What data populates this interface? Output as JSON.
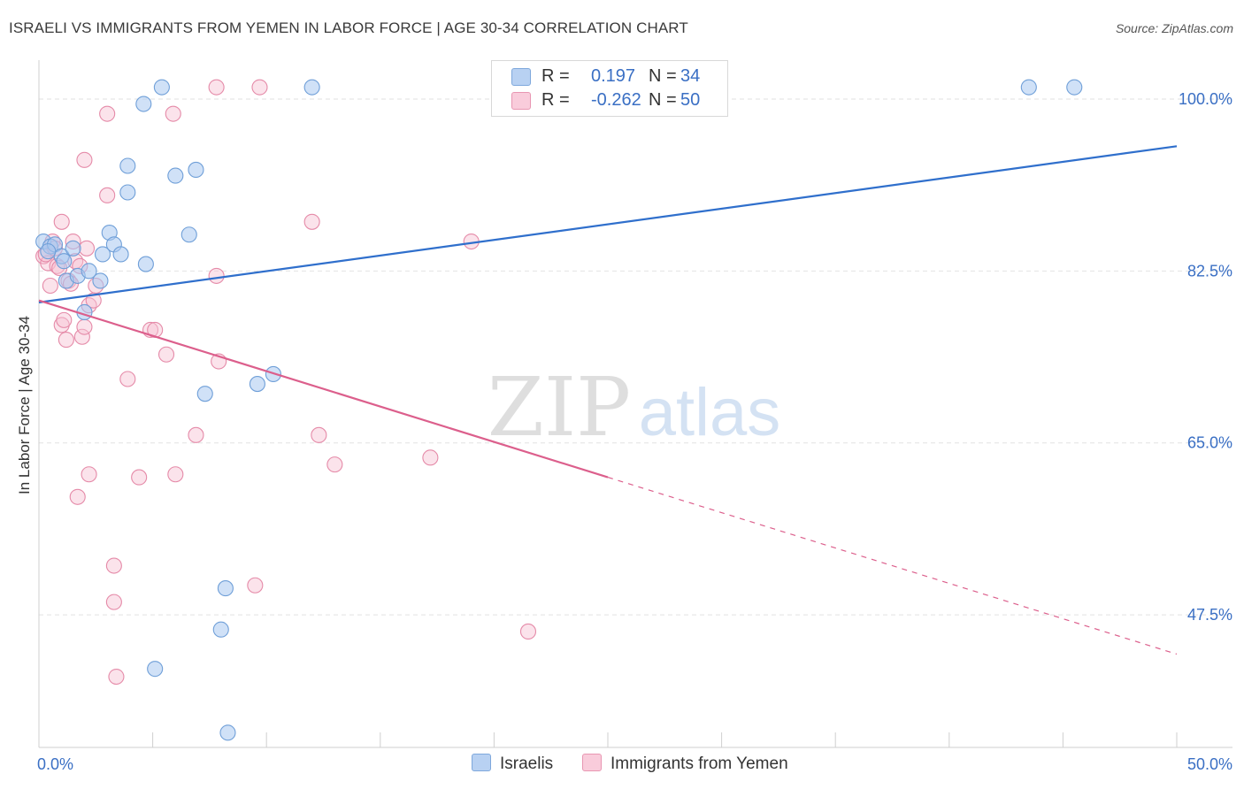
{
  "title": "ISRAELI VS IMMIGRANTS FROM YEMEN IN LABOR FORCE | AGE 30-34 CORRELATION CHART",
  "source": "Source: ZipAtlas.com",
  "watermark": {
    "zip": "ZIP",
    "atlas": "atlas"
  },
  "colors": {
    "blue_fill": "#a9c8f0",
    "blue_stroke": "#6f9fd8",
    "blue_line": "#2f6fcc",
    "pink_fill": "#f7c0d2",
    "pink_stroke": "#e58aa8",
    "pink_line": "#dc5f8c",
    "axis_text": "#3a6fc4",
    "grid": "#e2e2e2"
  },
  "legend": {
    "r_label": "R =",
    "n_label": "N =",
    "rows": [
      {
        "r": "0.197",
        "n": "34",
        "series": "israelis"
      },
      {
        "r": "-0.262",
        "n": "50",
        "series": "yemen"
      }
    ]
  },
  "bottom_legend": [
    "Israelis",
    "Immigrants from Yemen"
  ],
  "chart_data": {
    "type": "scatter",
    "title": "ISRAELI VS IMMIGRANTS FROM YEMEN IN LABOR FORCE | AGE 30-34 CORRELATION CHART",
    "xlabel": "",
    "ylabel": "In Labor Force | Age 30-34",
    "xlim": [
      0,
      50
    ],
    "ylim": [
      34,
      104.5
    ],
    "x_tick_labels": [
      {
        "value": 0,
        "label": "0.0%"
      },
      {
        "value": 50,
        "label": "50.0%"
      }
    ],
    "y_tick_labels": [
      {
        "value": 100,
        "label": "100.0%"
      },
      {
        "value": 82.5,
        "label": "82.5%"
      },
      {
        "value": 65,
        "label": "65.0%"
      },
      {
        "value": 47.5,
        "label": "47.5%"
      }
    ],
    "grid": true,
    "series": [
      {
        "name": "Israelis",
        "color": "#a9c8f0",
        "points": [
          [
            0.2,
            85.5
          ],
          [
            0.5,
            85.0
          ],
          [
            0.7,
            85.2
          ],
          [
            1.0,
            84.0
          ],
          [
            1.2,
            81.5
          ],
          [
            1.5,
            84.8
          ],
          [
            1.7,
            82.0
          ],
          [
            2.0,
            78.3
          ],
          [
            2.2,
            82.5
          ],
          [
            2.7,
            81.5
          ],
          [
            2.8,
            84.2
          ],
          [
            3.1,
            86.4
          ],
          [
            3.3,
            85.2
          ],
          [
            3.6,
            84.2
          ],
          [
            3.9,
            93.2
          ],
          [
            3.9,
            90.5
          ],
          [
            4.6,
            99.5
          ],
          [
            4.7,
            83.2
          ],
          [
            5.1,
            42.0
          ],
          [
            5.4,
            101.2
          ],
          [
            6.0,
            92.2
          ],
          [
            6.6,
            86.2
          ],
          [
            6.9,
            92.8
          ],
          [
            7.3,
            70.0
          ],
          [
            8.2,
            50.2
          ],
          [
            8.0,
            46.0
          ],
          [
            8.3,
            35.5
          ],
          [
            9.6,
            71.0
          ],
          [
            10.3,
            72.0
          ],
          [
            12.0,
            101.2
          ],
          [
            43.5,
            101.2
          ],
          [
            45.5,
            101.2
          ],
          [
            0.4,
            84.5
          ],
          [
            1.1,
            83.5
          ]
        ],
        "trend": {
          "x": [
            0,
            50
          ],
          "y": [
            79.3,
            95.2
          ],
          "style": "solid"
        }
      },
      {
        "name": "Immigrants from Yemen",
        "color": "#f7c0d2",
        "points": [
          [
            0.2,
            84.0
          ],
          [
            0.4,
            83.3
          ],
          [
            0.5,
            81.0
          ],
          [
            0.6,
            85.5
          ],
          [
            0.8,
            83.0
          ],
          [
            1.0,
            77.0
          ],
          [
            1.0,
            87.5
          ],
          [
            1.1,
            77.5
          ],
          [
            1.2,
            75.5
          ],
          [
            1.3,
            81.5
          ],
          [
            1.5,
            85.5
          ],
          [
            1.6,
            83.5
          ],
          [
            1.7,
            59.5
          ],
          [
            1.8,
            83.0
          ],
          [
            1.9,
            75.8
          ],
          [
            2.0,
            76.8
          ],
          [
            2.0,
            93.8
          ],
          [
            2.1,
            84.8
          ],
          [
            2.2,
            61.8
          ],
          [
            2.2,
            79.0
          ],
          [
            2.5,
            81.0
          ],
          [
            3.0,
            98.5
          ],
          [
            3.0,
            90.2
          ],
          [
            3.3,
            52.5
          ],
          [
            3.3,
            48.8
          ],
          [
            3.4,
            41.2
          ],
          [
            3.9,
            71.5
          ],
          [
            4.4,
            61.5
          ],
          [
            4.9,
            76.5
          ],
          [
            5.1,
            76.5
          ],
          [
            5.6,
            74.0
          ],
          [
            5.9,
            98.5
          ],
          [
            6.0,
            61.8
          ],
          [
            6.9,
            65.8
          ],
          [
            7.8,
            101.2
          ],
          [
            7.8,
            82.0
          ],
          [
            7.9,
            73.3
          ],
          [
            9.5,
            50.5
          ],
          [
            9.7,
            101.2
          ],
          [
            12.0,
            87.5
          ],
          [
            12.3,
            65.8
          ],
          [
            13.0,
            62.8
          ],
          [
            17.2,
            63.5
          ],
          [
            19.0,
            85.5
          ],
          [
            21.5,
            45.8
          ],
          [
            0.3,
            84.2
          ],
          [
            0.9,
            82.8
          ],
          [
            1.4,
            81.2
          ],
          [
            2.4,
            79.5
          ],
          [
            0.7,
            84.8
          ]
        ],
        "trend": {
          "x": [
            0,
            25,
            50
          ],
          "y": [
            79.5,
            61.5,
            43.5
          ],
          "style": "solid-then-dashed",
          "solid_until_x": 25
        }
      }
    ]
  }
}
